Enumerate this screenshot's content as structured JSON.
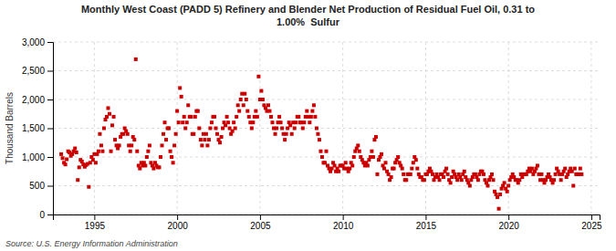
{
  "chart_data": {
    "type": "scatter",
    "title": "Monthly West Coast (PADD 5) Refinery and Blender Net Production of Residual Fuel Oil, 0.31 to\n1.00%  Sulfur",
    "y_label": "Thousand Barrels",
    "source": "Source: U.S. Energy Information Administration",
    "color": "#cc0000",
    "marker": "square",
    "grid": true,
    "xlim": [
      1992.5,
      2025.5
    ],
    "ylim": [
      0,
      3000
    ],
    "xticks": [
      1995,
      2000,
      2005,
      2010,
      2015,
      2020,
      2025
    ],
    "yticks": [
      0,
      500,
      {
        "value": 1000,
        "label": "1,000"
      },
      {
        "value": 1500,
        "label": "1,500"
      },
      {
        "value": 2000,
        "label": "2,000"
      },
      {
        "value": 2500,
        "label": "2,500"
      },
      {
        "value": 3000,
        "label": "3,000"
      }
    ],
    "x": [
      1993.0,
      1993.083,
      1993.167,
      1993.25,
      1993.333,
      1993.417,
      1993.5,
      1993.583,
      1993.667,
      1993.75,
      1993.833,
      1993.917,
      1994.0,
      1994.083,
      1994.167,
      1994.25,
      1994.333,
      1994.417,
      1994.5,
      1994.583,
      1994.667,
      1994.75,
      1994.833,
      1994.917,
      1995.0,
      1995.083,
      1995.167,
      1995.25,
      1995.333,
      1995.417,
      1995.5,
      1995.583,
      1995.667,
      1995.75,
      1995.833,
      1995.917,
      1996.0,
      1996.083,
      1996.167,
      1996.25,
      1996.333,
      1996.417,
      1996.5,
      1996.583,
      1996.667,
      1996.75,
      1996.833,
      1996.917,
      1997.0,
      1997.083,
      1997.167,
      1997.25,
      1997.333,
      1997.417,
      1997.5,
      1997.583,
      1997.667,
      1997.75,
      1997.833,
      1997.917,
      1998.0,
      1998.083,
      1998.167,
      1998.25,
      1998.333,
      1998.417,
      1998.5,
      1998.583,
      1998.667,
      1998.75,
      1998.833,
      1998.917,
      1999.0,
      1999.083,
      1999.167,
      1999.25,
      1999.333,
      1999.417,
      1999.5,
      1999.583,
      1999.667,
      1999.75,
      1999.833,
      1999.917,
      2000.0,
      2000.083,
      2000.167,
      2000.25,
      2000.333,
      2000.417,
      2000.5,
      2000.583,
      2000.667,
      2000.75,
      2000.833,
      2000.917,
      2001.0,
      2001.083,
      2001.167,
      2001.25,
      2001.333,
      2001.417,
      2001.5,
      2001.583,
      2001.667,
      2001.75,
      2001.833,
      2001.917,
      2002.0,
      2002.083,
      2002.167,
      2002.25,
      2002.333,
      2002.417,
      2002.5,
      2002.583,
      2002.667,
      2002.75,
      2002.833,
      2002.917,
      2003.0,
      2003.083,
      2003.167,
      2003.25,
      2003.333,
      2003.417,
      2003.5,
      2003.583,
      2003.667,
      2003.75,
      2003.833,
      2003.917,
      2004.0,
      2004.083,
      2004.167,
      2004.25,
      2004.333,
      2004.417,
      2004.5,
      2004.583,
      2004.667,
      2004.75,
      2004.833,
      2004.917,
      2005.0,
      2005.083,
      2005.167,
      2005.25,
      2005.333,
      2005.417,
      2005.5,
      2005.583,
      2005.667,
      2005.75,
      2005.833,
      2005.917,
      2006.0,
      2006.083,
      2006.167,
      2006.25,
      2006.333,
      2006.417,
      2006.5,
      2006.583,
      2006.667,
      2006.75,
      2006.833,
      2006.917,
      2007.0,
      2007.083,
      2007.167,
      2007.25,
      2007.333,
      2007.417,
      2007.5,
      2007.583,
      2007.667,
      2007.75,
      2007.833,
      2007.917,
      2008.0,
      2008.083,
      2008.167,
      2008.25,
      2008.333,
      2008.417,
      2008.5,
      2008.583,
      2008.667,
      2008.75,
      2008.833,
      2008.917,
      2009.0,
      2009.083,
      2009.167,
      2009.25,
      2009.333,
      2009.417,
      2009.5,
      2009.583,
      2009.667,
      2009.75,
      2009.833,
      2009.917,
      2010.0,
      2010.083,
      2010.167,
      2010.25,
      2010.333,
      2010.417,
      2010.5,
      2010.583,
      2010.667,
      2010.75,
      2010.833,
      2010.917,
      2011.0,
      2011.083,
      2011.167,
      2011.25,
      2011.333,
      2011.417,
      2011.5,
      2011.583,
      2011.667,
      2011.75,
      2011.833,
      2011.917,
      2012.0,
      2012.083,
      2012.167,
      2012.25,
      2012.333,
      2012.417,
      2012.5,
      2012.583,
      2012.667,
      2012.75,
      2012.833,
      2012.917,
      2013.0,
      2013.083,
      2013.167,
      2013.25,
      2013.333,
      2013.417,
      2013.5,
      2013.583,
      2013.667,
      2013.75,
      2013.833,
      2013.917,
      2014.0,
      2014.083,
      2014.167,
      2014.25,
      2014.333,
      2014.417,
      2014.5,
      2014.583,
      2014.667,
      2014.75,
      2014.833,
      2014.917,
      2015.0,
      2015.083,
      2015.167,
      2015.25,
      2015.333,
      2015.417,
      2015.5,
      2015.583,
      2015.667,
      2015.75,
      2015.833,
      2015.917,
      2016.0,
      2016.083,
      2016.167,
      2016.25,
      2016.333,
      2016.417,
      2016.5,
      2016.583,
      2016.667,
      2016.75,
      2016.833,
      2016.917,
      2017.0,
      2017.083,
      2017.167,
      2017.25,
      2017.333,
      2017.417,
      2017.5,
      2017.583,
      2017.667,
      2017.75,
      2017.833,
      2017.917,
      2018.0,
      2018.083,
      2018.167,
      2018.25,
      2018.333,
      2018.417,
      2018.5,
      2018.583,
      2018.667,
      2018.75,
      2018.833,
      2018.917,
      2019.0,
      2019.083,
      2019.167,
      2019.25,
      2019.333,
      2019.417,
      2019.5,
      2019.583,
      2019.667,
      2019.75,
      2019.833,
      2019.917,
      2020.0,
      2020.083,
      2020.167,
      2020.25,
      2020.333,
      2020.417,
      2020.5,
      2020.583,
      2020.667,
      2020.75,
      2020.833,
      2020.917,
      2021.0,
      2021.083,
      2021.167,
      2021.25,
      2021.333,
      2021.417,
      2021.5,
      2021.583,
      2021.667,
      2021.75,
      2021.833,
      2021.917,
      2022.0,
      2022.083,
      2022.167,
      2022.25,
      2022.333,
      2022.417,
      2022.5,
      2022.583,
      2022.667,
      2022.75,
      2022.833,
      2022.917,
      2023.0,
      2023.083,
      2023.167,
      2023.25,
      2023.333,
      2023.417,
      2023.5,
      2023.583,
      2023.667,
      2023.75,
      2023.833,
      2023.917,
      2024.0,
      2024.083,
      2024.167,
      2024.25,
      2024.333,
      2024.417
    ],
    "values": [
      1050,
      980,
      900,
      870,
      960,
      1100,
      1080,
      1020,
      1050,
      1100,
      1150,
      1080,
      600,
      820,
      950,
      920,
      870,
      830,
      860,
      880,
      480,
      900,
      1000,
      950,
      1050,
      900,
      1050,
      1100,
      1400,
      1200,
      1100,
      1500,
      1650,
      1700,
      1850,
      1750,
      1100,
      1550,
      1700,
      1300,
      1200,
      1150,
      1200,
      1350,
      1400,
      1400,
      1500,
      1450,
      1400,
      1200,
      1100,
      1200,
      1350,
      1300,
      2700,
      1100,
      850,
      800,
      900,
      850,
      900,
      850,
      1000,
      1100,
      1200,
      900,
      850,
      800,
      900,
      850,
      820,
      820,
      1000,
      1200,
      1400,
      1600,
      1300,
      1500,
      1500,
      1100,
      1000,
      900,
      1200,
      1400,
      1800,
      1600,
      2200,
      2050,
      1600,
      1700,
      1500,
      1600,
      1900,
      1700,
      1700,
      1400,
      1400,
      1700,
      1800,
      1800,
      1500,
      1300,
      1200,
      1400,
      1300,
      1400,
      1200,
      1300,
      1500,
      1600,
      1700,
      1700,
      1500,
      1400,
      1300,
      1250,
      1350,
      1500,
      1600,
      1550,
      1700,
      1600,
      1500,
      1400,
      1450,
      1600,
      1500,
      1700,
      1900,
      1800,
      2000,
      2100,
      1900,
      2100,
      2000,
      1800,
      1700,
      1600,
      1500,
      1600,
      1700,
      1800,
      1700,
      2400,
      2000,
      2150,
      2000,
      1900,
      1850,
      1800,
      1900,
      1800,
      1700,
      1600,
      1500,
      1400,
      1500,
      1600,
      1700,
      1600,
      1500,
      1400,
      1300,
      1400,
      1500,
      1600,
      1550,
      1400,
      1600,
      1500,
      1600,
      1700,
      1700,
      1600,
      1600,
      1500,
      1600,
      1700,
      1800,
      1700,
      1600,
      1700,
      1800,
      1900,
      1700,
      1500,
      1400,
      1300,
      1100,
      1000,
      900,
      900,
      1100,
      850,
      800,
      750,
      800,
      900,
      850,
      750,
      800,
      750,
      850,
      850,
      850,
      800,
      900,
      800,
      750,
      800,
      900,
      850,
      1000,
      1100,
      1150,
      1200,
      1100,
      1000,
      950,
      900,
      850,
      900,
      850,
      950,
      1000,
      1100,
      1000,
      1300,
      1350,
      700,
      950,
      1000,
      1050,
      850,
      800,
      900,
      750,
      700,
      600,
      650,
      800,
      800,
      900,
      950,
      1000,
      900,
      850,
      800,
      700,
      600,
      600,
      700,
      700,
      700,
      800,
      900,
      1000,
      950,
      800,
      700,
      650,
      650,
      600,
      600,
      700,
      700,
      750,
      800,
      750,
      700,
      600,
      650,
      700,
      650,
      600,
      700,
      700,
      650,
      750,
      800,
      700,
      600,
      550,
      650,
      750,
      700,
      650,
      600,
      700,
      650,
      600,
      700,
      750,
      650,
      600,
      550,
      500,
      600,
      650,
      700,
      700,
      650,
      600,
      700,
      750,
      750,
      700,
      600,
      550,
      500,
      600,
      650,
      700,
      600,
      400,
      350,
      300,
      100,
      350,
      450,
      500,
      550,
      450,
      400,
      500,
      600,
      650,
      700,
      650,
      600,
      600,
      550,
      600,
      700,
      650,
      700,
      700,
      700,
      750,
      800,
      750,
      800,
      700,
      750,
      800,
      850,
      700,
      600,
      700,
      600,
      550,
      600,
      650,
      700,
      650,
      600,
      550,
      600,
      700,
      800,
      750,
      700,
      600,
      700,
      750,
      800,
      650,
      700,
      750,
      800,
      750,
      500,
      800,
      700,
      700,
      700,
      800,
      700
    ]
  }
}
